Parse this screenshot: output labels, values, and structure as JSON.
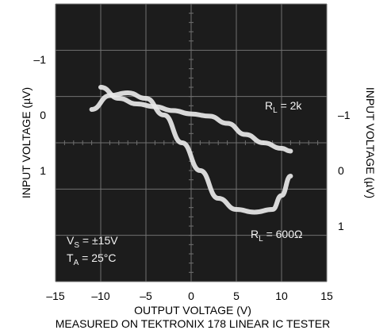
{
  "chart_data": {
    "type": "line",
    "background_color": "#1c1c1c",
    "grid_color": "#707070",
    "trace_color": "#e8e8e8",
    "grid": true,
    "xlabel": "OUTPUT VOLTAGE (V)",
    "footnote": "MEASURED ON TEKTRONIX 178 LINEAR IC TESTER",
    "x_ticks": [
      "–15",
      "–10",
      "–5",
      "0",
      "5",
      "10",
      "15"
    ],
    "xlim": [
      -15,
      15
    ],
    "left_axis": {
      "label": "INPUT VOLTAGE (µV)",
      "ticks": [
        "–1",
        "0",
        "1"
      ],
      "ylim": [
        -2,
        3
      ],
      "inverted": true
    },
    "right_axis": {
      "label": "INPUT VOLTAGE (µV)",
      "ticks": [
        "–1",
        "0",
        "1"
      ],
      "ylim": [
        -3,
        2
      ],
      "inverted": true
    },
    "conditions": {
      "vs": {
        "main": "V",
        "sub": "S",
        "value": " = ±15V"
      },
      "ta": {
        "main": "T",
        "sub": "A",
        "value": " = 25°C"
      }
    },
    "series": [
      {
        "name": {
          "main": "R",
          "sub": "L",
          "value": " = 2k"
        },
        "axis": "left",
        "x": [
          -10,
          -8,
          -6,
          -4,
          -2,
          0,
          2,
          4,
          6,
          8,
          10,
          11
        ],
        "y": [
          -0.5,
          -0.3,
          -0.2,
          -0.15,
          -0.08,
          -0.02,
          0.02,
          0.15,
          0.35,
          0.5,
          0.6,
          0.65
        ]
      },
      {
        "name": {
          "main": "R",
          "sub": "L",
          "value": " = 600Ω"
        },
        "axis": "right",
        "x": [
          -11,
          -9,
          -7,
          -5,
          -3,
          -1,
          1,
          3,
          5,
          7,
          9,
          10,
          11
        ],
        "y": [
          -1.1,
          -1.35,
          -1.4,
          -1.3,
          -1.0,
          -0.5,
          0.0,
          0.5,
          0.7,
          0.75,
          0.7,
          0.45,
          0.1
        ]
      }
    ]
  }
}
